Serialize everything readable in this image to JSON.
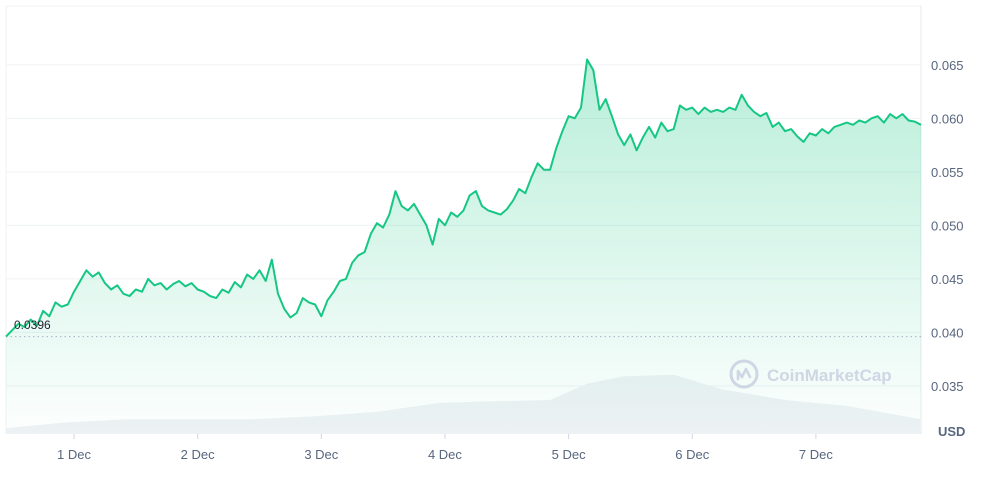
{
  "chart_data": {
    "type": "line",
    "currency_label": "USD",
    "watermark": "CoinMarketCap",
    "baseline_label": "0.0396",
    "baseline_value": 0.0396,
    "ylim": [
      0.0305,
      0.0705
    ],
    "y_ticks": [
      {
        "value": 0.065,
        "label": "0.065"
      },
      {
        "value": 0.06,
        "label": "0.060"
      },
      {
        "value": 0.055,
        "label": "0.055"
      },
      {
        "value": 0.05,
        "label": "0.050"
      },
      {
        "value": 0.045,
        "label": "0.045"
      },
      {
        "value": 0.04,
        "label": "0.040"
      },
      {
        "value": 0.035,
        "label": "0.035"
      }
    ],
    "xlim": [
      0,
      7.4
    ],
    "x_ticks": [
      {
        "value": 0.55,
        "label": "1 Dec"
      },
      {
        "value": 1.55,
        "label": "2 Dec"
      },
      {
        "value": 2.55,
        "label": "3 Dec"
      },
      {
        "value": 3.55,
        "label": "4 Dec"
      },
      {
        "value": 4.55,
        "label": "5 Dec"
      },
      {
        "value": 5.55,
        "label": "6 Dec"
      },
      {
        "value": 6.55,
        "label": "7 Dec"
      }
    ],
    "colors": {
      "line": "#16c784",
      "area_top": "#16c784",
      "grid": "#eff2f5",
      "axis_text": "#58667e",
      "volume": "#eff2f5",
      "watermark": "#cfd6e4"
    },
    "series": [
      {
        "points": [
          [
            0.0,
            0.0396
          ],
          [
            0.05,
            0.0402
          ],
          [
            0.1,
            0.0408
          ],
          [
            0.15,
            0.0405
          ],
          [
            0.2,
            0.0412
          ],
          [
            0.25,
            0.0406
          ],
          [
            0.3,
            0.042
          ],
          [
            0.35,
            0.0415
          ],
          [
            0.4,
            0.0428
          ],
          [
            0.45,
            0.0424
          ],
          [
            0.5,
            0.0426
          ],
          [
            0.55,
            0.0438
          ],
          [
            0.6,
            0.0448
          ],
          [
            0.65,
            0.0458
          ],
          [
            0.7,
            0.0452
          ],
          [
            0.75,
            0.0456
          ],
          [
            0.8,
            0.0446
          ],
          [
            0.85,
            0.044
          ],
          [
            0.9,
            0.0444
          ],
          [
            0.95,
            0.0436
          ],
          [
            1.0,
            0.0434
          ],
          [
            1.05,
            0.044
          ],
          [
            1.1,
            0.0438
          ],
          [
            1.15,
            0.045
          ],
          [
            1.2,
            0.0444
          ],
          [
            1.25,
            0.0446
          ],
          [
            1.3,
            0.044
          ],
          [
            1.35,
            0.0445
          ],
          [
            1.4,
            0.0448
          ],
          [
            1.45,
            0.0443
          ],
          [
            1.5,
            0.0446
          ],
          [
            1.55,
            0.044
          ],
          [
            1.6,
            0.0438
          ],
          [
            1.65,
            0.0434
          ],
          [
            1.7,
            0.0432
          ],
          [
            1.75,
            0.044
          ],
          [
            1.8,
            0.0437
          ],
          [
            1.85,
            0.0447
          ],
          [
            1.9,
            0.0442
          ],
          [
            1.95,
            0.0454
          ],
          [
            2.0,
            0.045
          ],
          [
            2.05,
            0.0458
          ],
          [
            2.1,
            0.0448
          ],
          [
            2.15,
            0.0468
          ],
          [
            2.2,
            0.0436
          ],
          [
            2.25,
            0.0422
          ],
          [
            2.3,
            0.0414
          ],
          [
            2.35,
            0.0418
          ],
          [
            2.4,
            0.0432
          ],
          [
            2.45,
            0.0428
          ],
          [
            2.5,
            0.0426
          ],
          [
            2.55,
            0.0415
          ],
          [
            2.6,
            0.043
          ],
          [
            2.65,
            0.0438
          ],
          [
            2.7,
            0.0448
          ],
          [
            2.75,
            0.045
          ],
          [
            2.8,
            0.0465
          ],
          [
            2.85,
            0.0472
          ],
          [
            2.9,
            0.0475
          ],
          [
            2.95,
            0.0492
          ],
          [
            3.0,
            0.0502
          ],
          [
            3.05,
            0.0498
          ],
          [
            3.1,
            0.051
          ],
          [
            3.15,
            0.0532
          ],
          [
            3.2,
            0.0518
          ],
          [
            3.25,
            0.0514
          ],
          [
            3.3,
            0.052
          ],
          [
            3.35,
            0.051
          ],
          [
            3.4,
            0.05
          ],
          [
            3.45,
            0.0482
          ],
          [
            3.5,
            0.0506
          ],
          [
            3.55,
            0.05
          ],
          [
            3.6,
            0.0512
          ],
          [
            3.65,
            0.0508
          ],
          [
            3.7,
            0.0514
          ],
          [
            3.75,
            0.0528
          ],
          [
            3.8,
            0.0532
          ],
          [
            3.85,
            0.0518
          ],
          [
            3.9,
            0.0514
          ],
          [
            3.95,
            0.0512
          ],
          [
            4.0,
            0.051
          ],
          [
            4.05,
            0.0515
          ],
          [
            4.1,
            0.0523
          ],
          [
            4.15,
            0.0534
          ],
          [
            4.2,
            0.053
          ],
          [
            4.25,
            0.0545
          ],
          [
            4.3,
            0.0558
          ],
          [
            4.35,
            0.0552
          ],
          [
            4.4,
            0.0552
          ],
          [
            4.45,
            0.0572
          ],
          [
            4.5,
            0.0588
          ],
          [
            4.55,
            0.0602
          ],
          [
            4.6,
            0.06
          ],
          [
            4.65,
            0.061
          ],
          [
            4.7,
            0.0655
          ],
          [
            4.75,
            0.0645
          ],
          [
            4.8,
            0.0608
          ],
          [
            4.85,
            0.0618
          ],
          [
            4.9,
            0.0602
          ],
          [
            4.95,
            0.0585
          ],
          [
            5.0,
            0.0575
          ],
          [
            5.05,
            0.0585
          ],
          [
            5.1,
            0.057
          ],
          [
            5.15,
            0.0582
          ],
          [
            5.2,
            0.0592
          ],
          [
            5.25,
            0.0582
          ],
          [
            5.3,
            0.0596
          ],
          [
            5.35,
            0.0588
          ],
          [
            5.4,
            0.059
          ],
          [
            5.45,
            0.0612
          ],
          [
            5.5,
            0.0608
          ],
          [
            5.55,
            0.061
          ],
          [
            5.6,
            0.0604
          ],
          [
            5.65,
            0.061
          ],
          [
            5.7,
            0.0606
          ],
          [
            5.75,
            0.0608
          ],
          [
            5.8,
            0.0606
          ],
          [
            5.85,
            0.061
          ],
          [
            5.9,
            0.0608
          ],
          [
            5.95,
            0.0622
          ],
          [
            6.0,
            0.0612
          ],
          [
            6.05,
            0.0606
          ],
          [
            6.1,
            0.0602
          ],
          [
            6.15,
            0.0605
          ],
          [
            6.2,
            0.0592
          ],
          [
            6.25,
            0.0596
          ],
          [
            6.3,
            0.0588
          ],
          [
            6.35,
            0.059
          ],
          [
            6.4,
            0.0583
          ],
          [
            6.45,
            0.0578
          ],
          [
            6.5,
            0.0586
          ],
          [
            6.55,
            0.0584
          ],
          [
            6.6,
            0.059
          ],
          [
            6.65,
            0.0586
          ],
          [
            6.7,
            0.0592
          ],
          [
            6.75,
            0.0594
          ],
          [
            6.8,
            0.0596
          ],
          [
            6.85,
            0.0594
          ],
          [
            6.9,
            0.0598
          ],
          [
            6.95,
            0.0596
          ],
          [
            7.0,
            0.06
          ],
          [
            7.05,
            0.0602
          ],
          [
            7.1,
            0.0596
          ],
          [
            7.15,
            0.0604
          ],
          [
            7.2,
            0.06
          ],
          [
            7.25,
            0.0604
          ],
          [
            7.3,
            0.0598
          ],
          [
            7.35,
            0.0597
          ],
          [
            7.4,
            0.0594
          ]
        ]
      }
    ],
    "volume": {
      "points": [
        [
          0.0,
          0.08
        ],
        [
          0.5,
          0.16
        ],
        [
          1.0,
          0.2
        ],
        [
          1.5,
          0.2
        ],
        [
          2.0,
          0.2
        ],
        [
          2.5,
          0.24
        ],
        [
          3.0,
          0.3
        ],
        [
          3.5,
          0.42
        ],
        [
          3.9,
          0.44
        ],
        [
          4.4,
          0.46
        ],
        [
          4.7,
          0.68
        ],
        [
          5.0,
          0.78
        ],
        [
          5.4,
          0.8
        ],
        [
          5.8,
          0.6
        ],
        [
          6.3,
          0.46
        ],
        [
          6.8,
          0.38
        ],
        [
          7.4,
          0.2
        ]
      ]
    }
  }
}
